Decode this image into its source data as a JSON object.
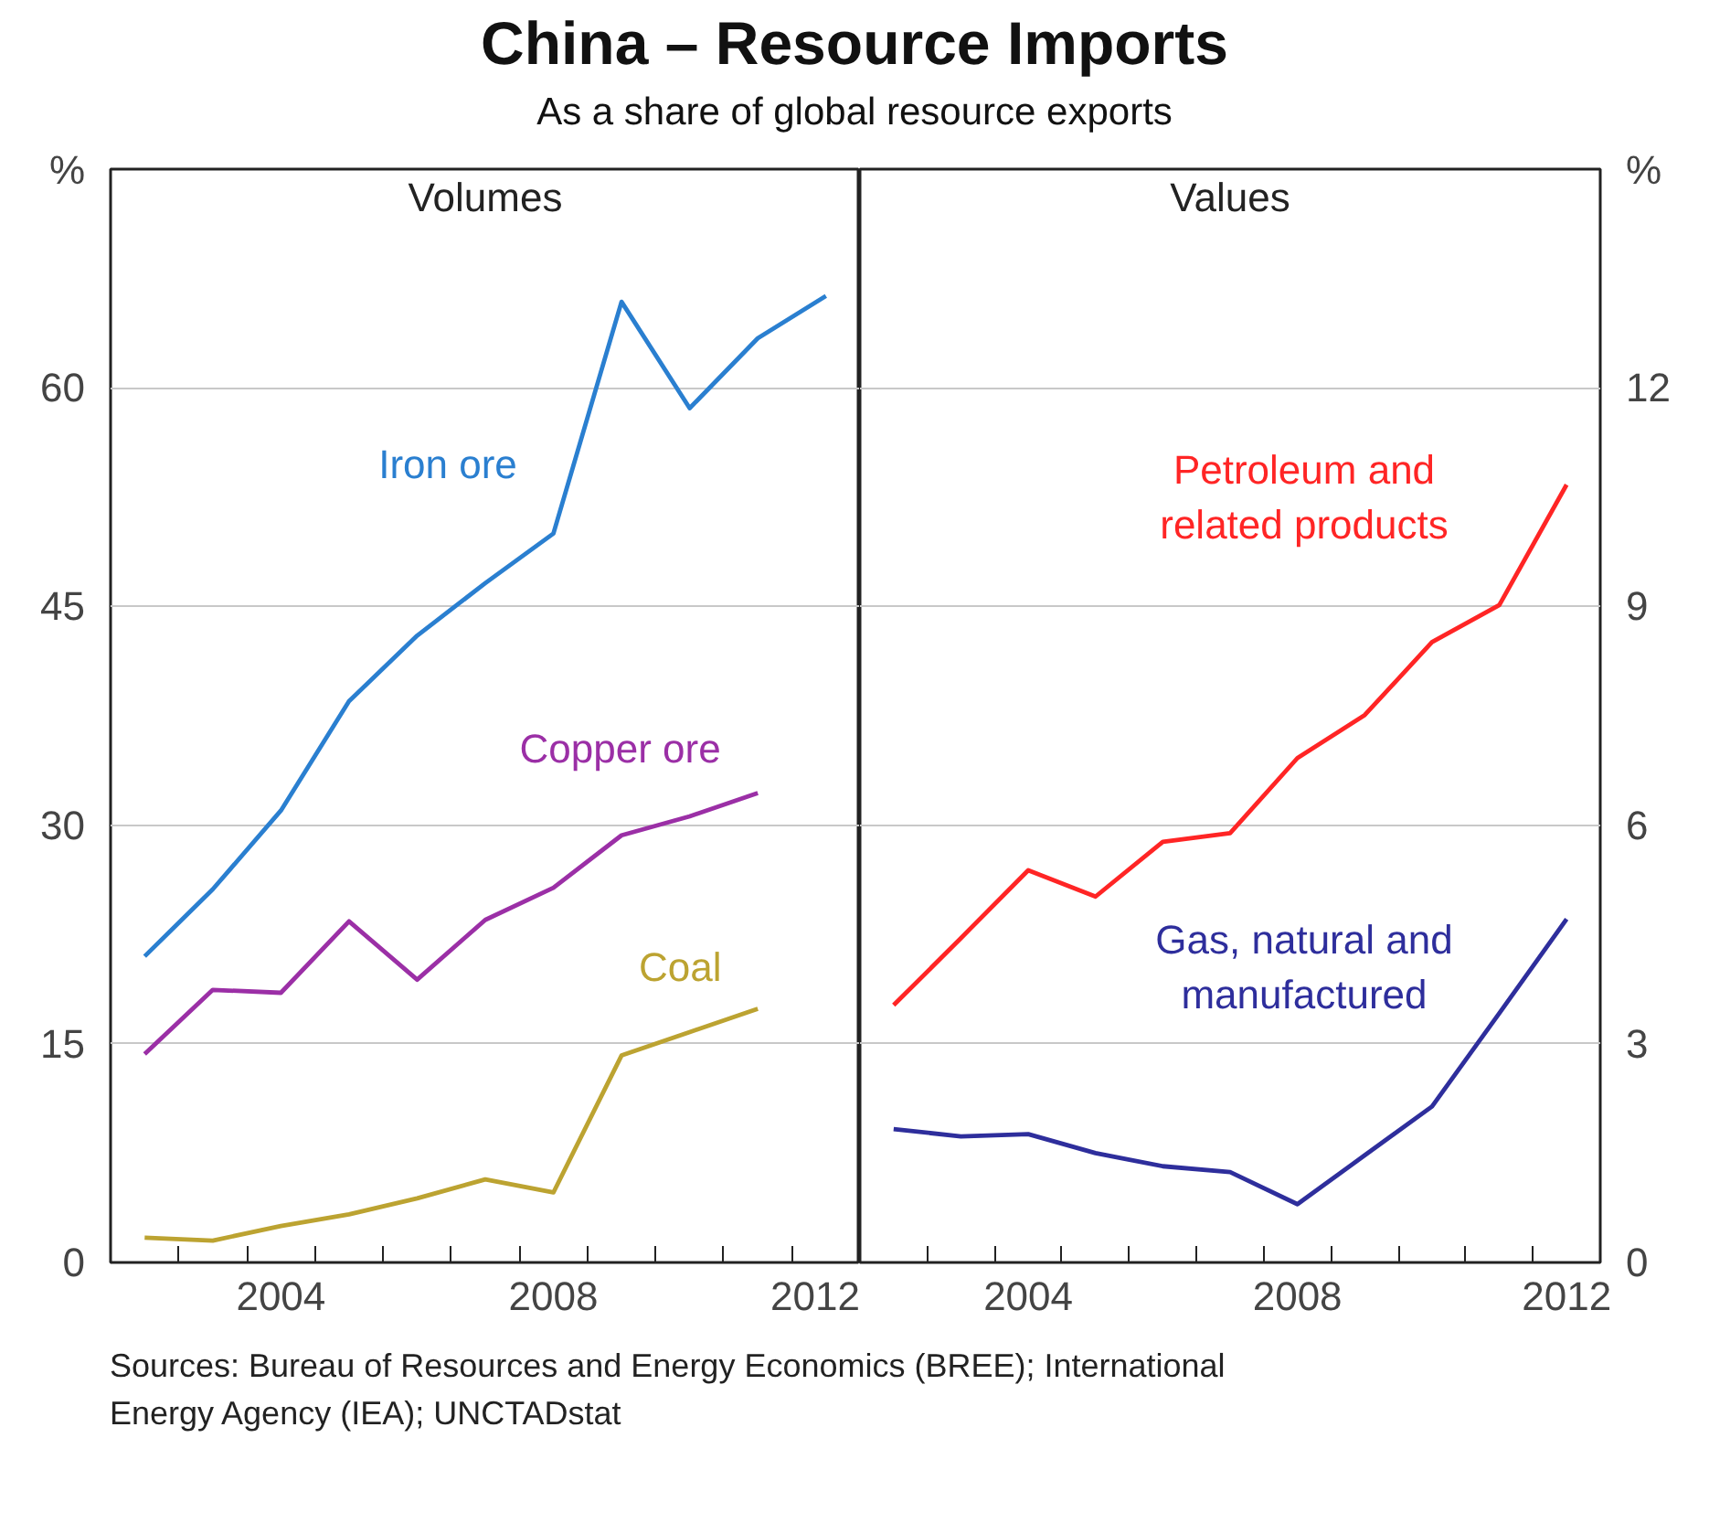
{
  "chart_data": [
    {
      "type": "line",
      "title": "China – Resource Imports",
      "subtitle": "As a share of global resource exports",
      "ylabel": "%",
      "annotations": [
        "Volumes"
      ],
      "x": [
        2002,
        2003,
        2004,
        2005,
        2006,
        2007,
        2008,
        2009,
        2010,
        2011,
        2012
      ],
      "series": [
        {
          "name": "Iron ore",
          "color": "#2a7fd0",
          "values": [
            21.0,
            25.6,
            31.0,
            38.5,
            43.0,
            46.6,
            50.0,
            65.9,
            58.6,
            63.4,
            66.3
          ]
        },
        {
          "name": "Copper ore",
          "color": "#9b2fa6",
          "values": [
            14.3,
            18.7,
            18.5,
            23.4,
            19.4,
            23.5,
            25.7,
            29.3,
            30.6,
            32.2,
            null
          ]
        },
        {
          "name": "Coal",
          "color": "#bca331",
          "values": [
            1.7,
            1.5,
            2.5,
            3.3,
            4.4,
            5.7,
            4.8,
            14.2,
            15.8,
            17.4,
            null
          ]
        }
      ],
      "xlim": [
        2001.5,
        2012.5
      ],
      "xticks": [
        {
          "value": 2002.5,
          "label": null
        },
        {
          "value": 2003.5,
          "label": null
        },
        {
          "value": 2004,
          "label": "2004"
        },
        {
          "value": 2004.5,
          "label": null
        },
        {
          "value": 2005.5,
          "label": null
        },
        {
          "value": 2006.5,
          "label": null
        },
        {
          "value": 2007.5,
          "label": null
        },
        {
          "value": 2008,
          "label": "2008"
        },
        {
          "value": 2008.5,
          "label": null
        },
        {
          "value": 2009.5,
          "label": null
        },
        {
          "value": 2010.5,
          "label": null
        },
        {
          "value": 2011.5,
          "label": null
        },
        {
          "value": 2012,
          "label": "2012"
        }
      ],
      "ylim": [
        0,
        75
      ],
      "yticks": [
        0,
        15,
        30,
        45,
        60
      ],
      "grid": "y"
    },
    {
      "type": "line",
      "ylabel": "%",
      "annotations": [
        "Values",
        "Sources: Bureau of Resources and Energy Economics (BREE); International Energy Agency (IEA); UNCTADstat"
      ],
      "x": [
        2002,
        2003,
        2004,
        2005,
        2006,
        2007,
        2008,
        2009,
        2010,
        2011,
        2012
      ],
      "series": [
        {
          "name": "Petroleum and related products",
          "color": "#ff2525",
          "values": [
            3.53,
            4.45,
            5.38,
            5.02,
            5.77,
            5.89,
            6.92,
            7.51,
            8.51,
            9.02,
            10.67
          ]
        },
        {
          "name": "Gas, natural and manufactured",
          "color": "#2e2e9c",
          "values": [
            1.83,
            1.73,
            1.76,
            1.5,
            1.32,
            1.24,
            0.8,
            1.47,
            2.14,
            3.42,
            4.71
          ]
        }
      ],
      "xlim": [
        2001.5,
        2012.5
      ],
      "xticks": [
        {
          "value": 2002.5,
          "label": null
        },
        {
          "value": 2003.5,
          "label": null
        },
        {
          "value": 2004,
          "label": "2004"
        },
        {
          "value": 2004.5,
          "label": null
        },
        {
          "value": 2005.5,
          "label": null
        },
        {
          "value": 2006.5,
          "label": null
        },
        {
          "value": 2007.5,
          "label": null
        },
        {
          "value": 2008,
          "label": "2008"
        },
        {
          "value": 2008.5,
          "label": null
        },
        {
          "value": 2009.5,
          "label": null
        },
        {
          "value": 2010.5,
          "label": null
        },
        {
          "value": 2011.5,
          "label": null
        },
        {
          "value": 2012,
          "label": "2012"
        }
      ],
      "ylim": [
        0,
        15
      ],
      "yticks": [
        0,
        3,
        6,
        9,
        12
      ],
      "grid": "y"
    }
  ]
}
